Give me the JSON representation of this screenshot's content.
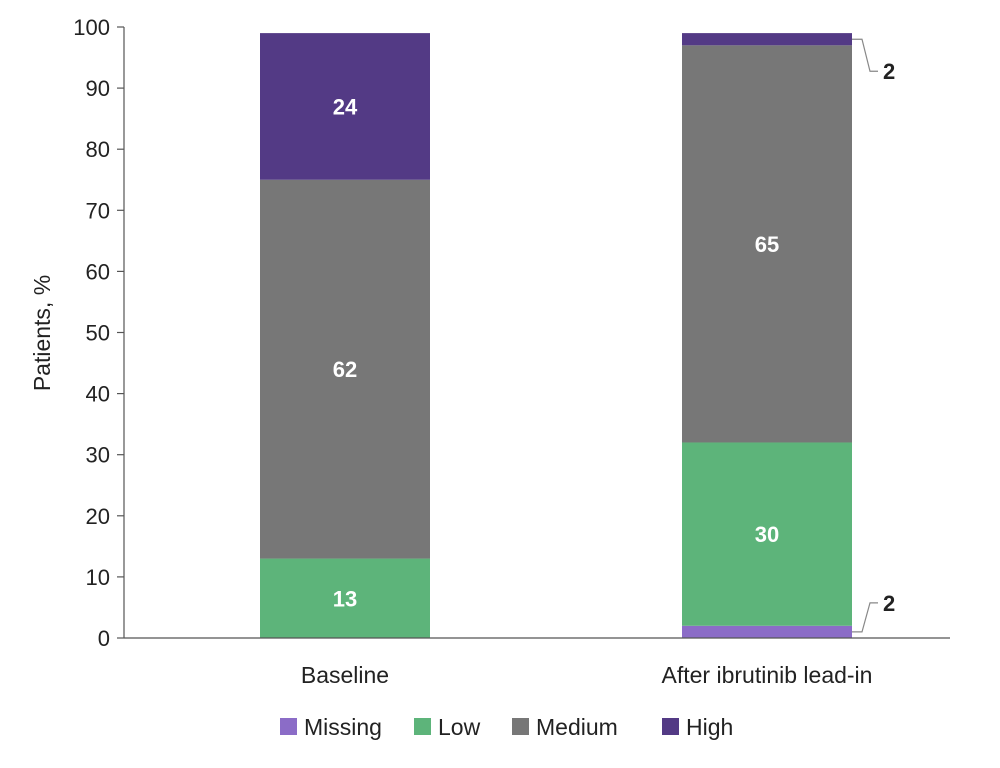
{
  "chart_data": {
    "type": "bar",
    "stacked": true,
    "ylabel": "Patients, %",
    "ylim": [
      0,
      100
    ],
    "yticks": [
      0,
      10,
      20,
      30,
      40,
      50,
      60,
      70,
      80,
      90,
      100
    ],
    "categories": [
      "Baseline",
      "After ibrutinib lead-in"
    ],
    "series": [
      {
        "name": "Missing",
        "color": "#8b6cc7",
        "values": [
          0,
          2
        ]
      },
      {
        "name": "Low",
        "color": "#5db47a",
        "values": [
          13,
          30
        ]
      },
      {
        "name": "Medium",
        "color": "#777777",
        "values": [
          62,
          65
        ]
      },
      {
        "name": "High",
        "color": "#533a85",
        "values": [
          24,
          2
        ]
      }
    ],
    "data_labels": [
      [
        "",
        "2"
      ],
      [
        "13",
        "30"
      ],
      [
        "62",
        "65"
      ],
      [
        "24",
        "2"
      ]
    ],
    "legend_position": "bottom",
    "grid": false
  }
}
